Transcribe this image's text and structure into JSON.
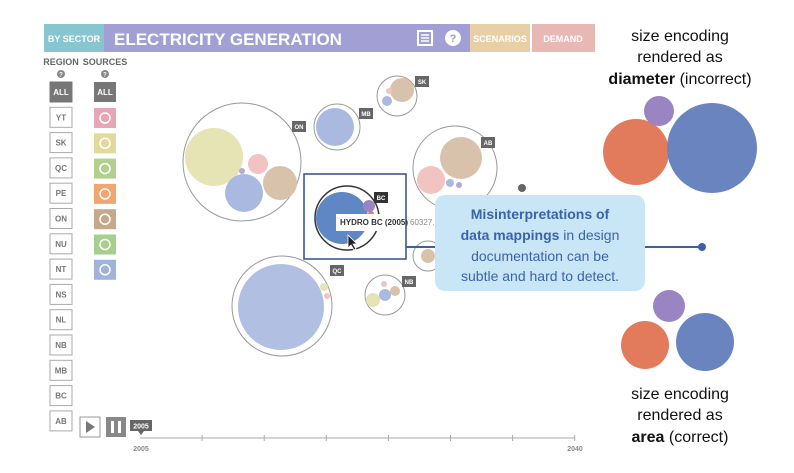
{
  "header": {
    "tab": "BY SECTOR",
    "title": "ELECTRICITY GENERATION",
    "scenarios": "SCENARIOS",
    "demand": "DEMAND"
  },
  "sidebar": {
    "region_label": "REGION",
    "sources_label": "SOURCES",
    "help": "?",
    "regions": [
      "ALL",
      "YT",
      "SK",
      "QC",
      "PE",
      "ON",
      "NU",
      "NT",
      "NS",
      "NL",
      "NB",
      "MB",
      "BC",
      "AB"
    ],
    "sources_all": "ALL"
  },
  "clusters": {
    "on": "ON",
    "mb": "MB",
    "sk": "SK",
    "ab": "AB",
    "bc": "BC",
    "qc": "QC",
    "nb": "NB"
  },
  "tooltip": {
    "label": "HYDRO BC (2005)",
    "value": "60327."
  },
  "timeline": {
    "current": "2005",
    "start": "2005",
    "end": "2040"
  },
  "callout": {
    "bold": "Misinterpretations of",
    "bold2": "data mappings",
    "rest1": " in design",
    "rest2": "documentation can be",
    "rest3": "subtle and hard to detect."
  },
  "right": {
    "top": {
      "line1": "size encoding",
      "line2": "rendered as",
      "bold": "diameter",
      "rest": " (incorrect)"
    },
    "bottom": {
      "line1": "size encoding",
      "line2": "rendered as",
      "bold": "area",
      "rest": " (correct)"
    }
  }
}
